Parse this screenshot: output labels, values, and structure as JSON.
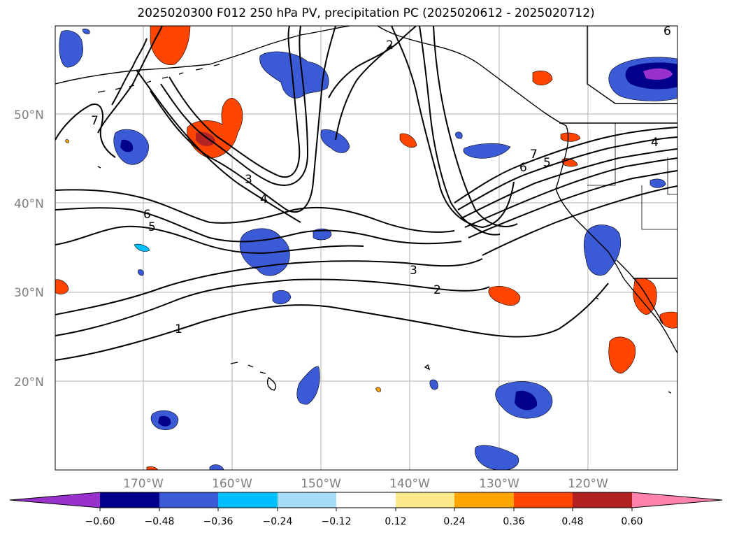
{
  "title": "2025020300 F012 250 hPa PV, precipitation PC (2025020612 - 2025020712)",
  "axes": {
    "lat_labels": [
      "50°N",
      "40°N",
      "30°N",
      "20°N"
    ],
    "lon_labels": [
      "170°W",
      "160°W",
      "150°W",
      "140°W",
      "130°W",
      "120°W"
    ]
  },
  "contour_labels": [
    "2",
    "6",
    "7",
    "3",
    "4",
    "6",
    "5",
    "3",
    "2",
    "1",
    "7",
    "6",
    "5",
    "4"
  ],
  "colorbar": {
    "tick_labels": [
      "−0.60",
      "−0.48",
      "−0.36",
      "−0.24",
      "−0.12",
      "0.12",
      "0.24",
      "0.36",
      "0.48",
      "0.60"
    ],
    "colors": [
      "#9932cc",
      "#00008b",
      "#3b5bd6",
      "#00bfff",
      "#a6dcf7",
      "#ffffff",
      "#fce98c",
      "#ffa500",
      "#ff4500",
      "#b22222",
      "#ff82ab"
    ]
  },
  "colors": {
    "negative_strong": "#00008b",
    "negative_mid": "#3b5bd6",
    "negative_light": "#00bfff",
    "positive_mid": "#ff4500",
    "positive_strong": "#b22222",
    "extreme_negative": "#9932cc"
  }
}
